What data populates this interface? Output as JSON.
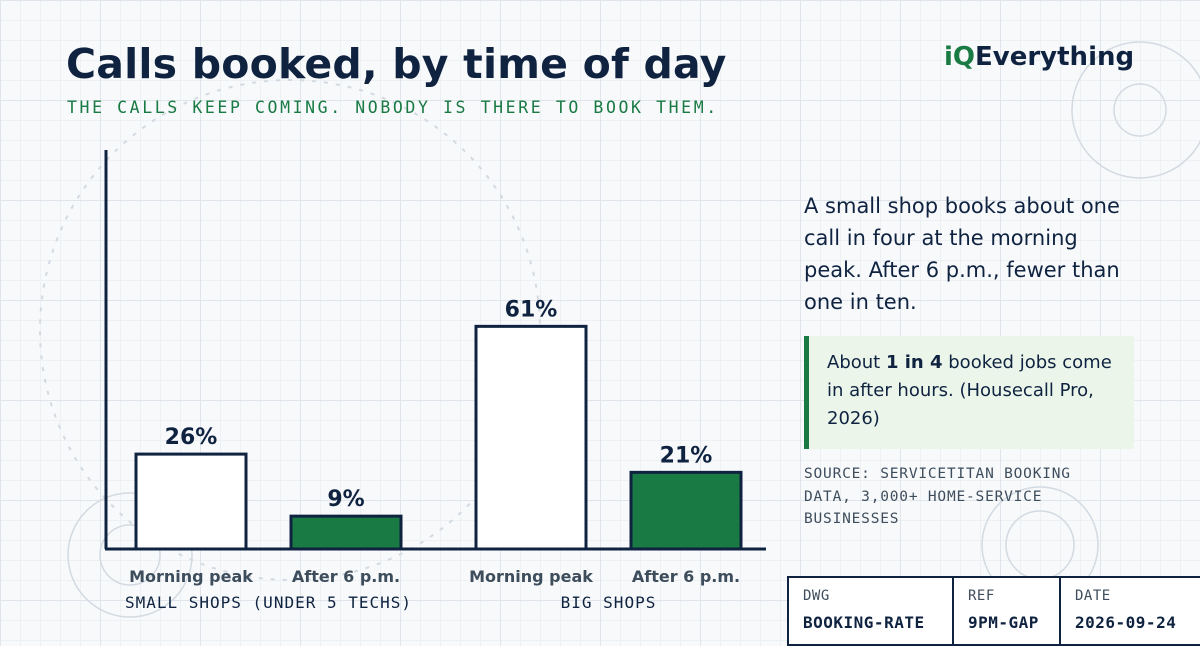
{
  "header": {
    "title": "Calls booked, by time of day",
    "subtitle": "THE CALLS KEEP COMING. NOBODY IS THERE TO BOOK THEM.",
    "brand_prefix": "iQ",
    "brand_suffix": "Everything"
  },
  "chart_data": {
    "type": "bar",
    "unit": "%",
    "groups": [
      {
        "name": "SMALL SHOPS (UNDER 5 TECHS)",
        "bars": [
          {
            "label": "Morning peak",
            "value": 26,
            "color": "#ffffff"
          },
          {
            "label": "After 6 p.m.",
            "value": 9,
            "color": "#1a7a44"
          }
        ]
      },
      {
        "name": "BIG SHOPS",
        "bars": [
          {
            "label": "Morning peak",
            "value": 61,
            "color": "#ffffff"
          },
          {
            "label": "After 6 p.m.",
            "value": 21,
            "color": "#1a7a44"
          }
        ]
      }
    ],
    "ylim": [
      0,
      100
    ],
    "grid": false
  },
  "summary": {
    "text": "A small shop books about one call in four at the morning peak. After 6 p.m., fewer than one in ten."
  },
  "callout": {
    "prefix": "About ",
    "highlight": "1 in 4",
    "suffix": " booked jobs come in after hours. (Housecall Pro, 2026)"
  },
  "source": {
    "text": "SOURCE: SERVICETITAN BOOKING DATA, 3,000+ HOME-SERVICE BUSINESSES"
  },
  "titleblock": {
    "dwg_label": "DWG",
    "dwg_value": "BOOKING-RATE",
    "ref_label": "REF",
    "ref_value": "9PM-GAP",
    "date_label": "DATE",
    "date_value": "2026-09-24"
  },
  "colors": {
    "ink": "#0f2340",
    "accent": "#1a7a44",
    "callout_bg": "#ebf5ea"
  }
}
